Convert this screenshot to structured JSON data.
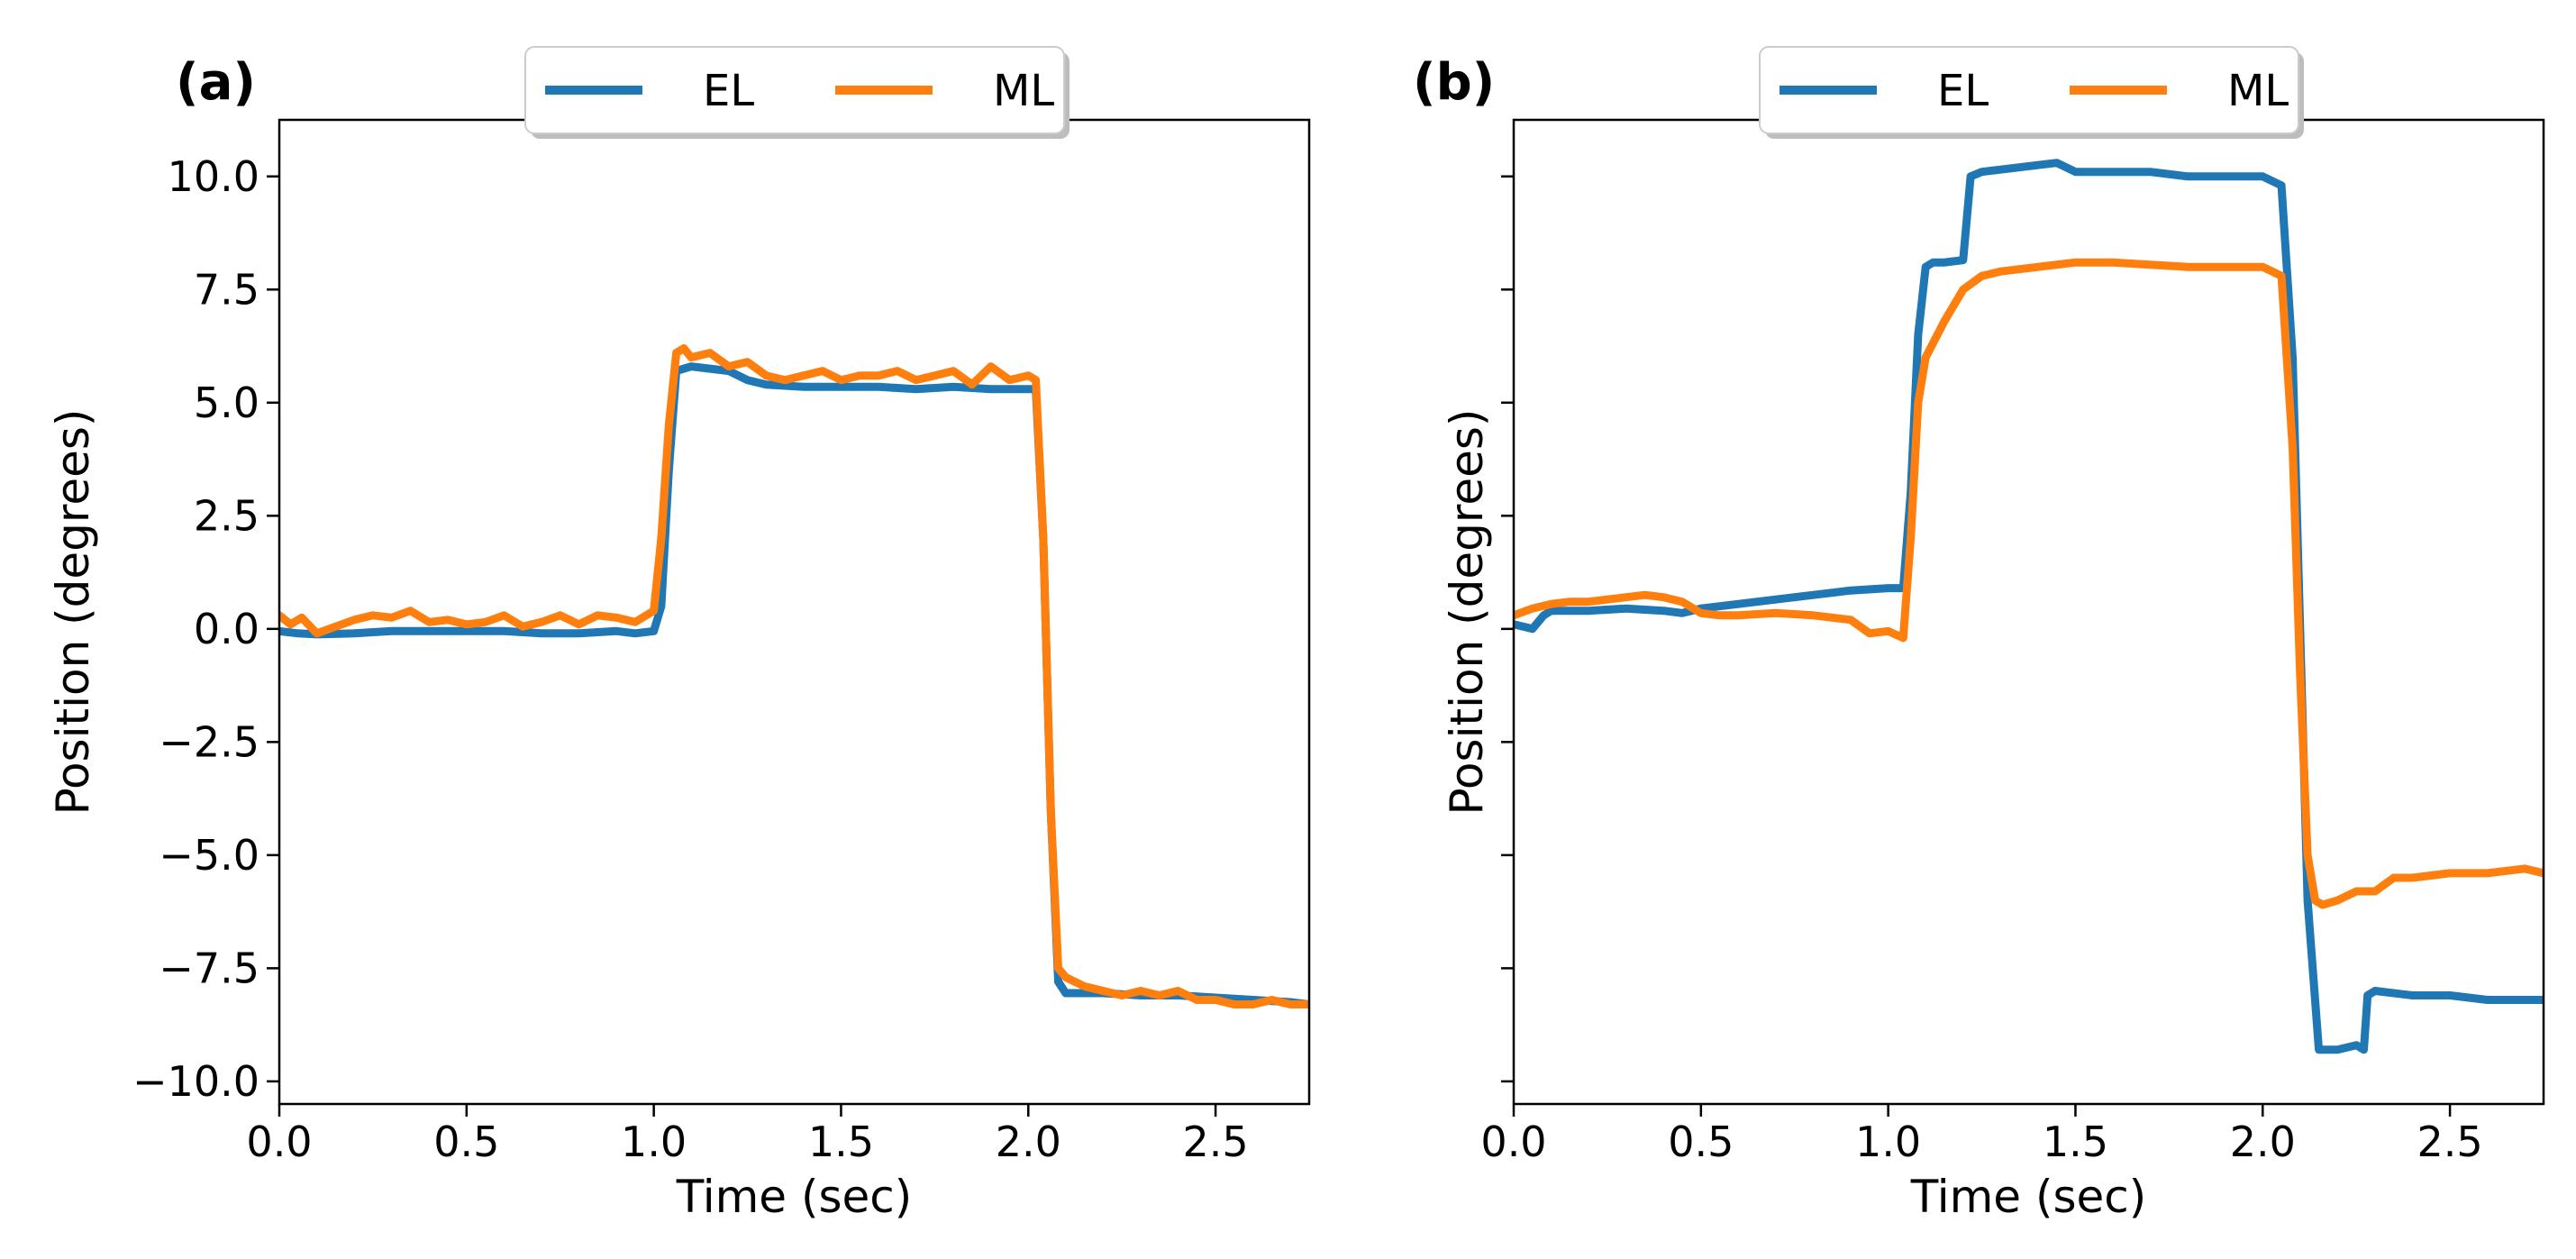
{
  "chart_data": [
    {
      "type": "line",
      "panel_label": "(a)",
      "xlabel": "Time (sec)",
      "ylabel": "Position (degrees)",
      "xlim": [
        0.0,
        2.75
      ],
      "ylim": [
        -10.5,
        11.25
      ],
      "xticks": [
        "0.0",
        "0.5",
        "1.0",
        "1.5",
        "2.0",
        "2.5"
      ],
      "yticks": [
        "10.0",
        "7.5",
        "5.0",
        "2.5",
        "0.0",
        "−2.5",
        "−5.0",
        "−7.5",
        "−10.0"
      ],
      "show_ytick_labels": true,
      "grid": false,
      "legend": "top-center",
      "series": [
        {
          "name": "EL",
          "color": "#1f77b4",
          "x": [
            0.0,
            0.05,
            0.1,
            0.2,
            0.3,
            0.4,
            0.5,
            0.6,
            0.7,
            0.8,
            0.9,
            0.95,
            1.0,
            1.02,
            1.04,
            1.06,
            1.1,
            1.2,
            1.25,
            1.3,
            1.4,
            1.5,
            1.6,
            1.7,
            1.8,
            1.9,
            2.0,
            2.02,
            2.04,
            2.06,
            2.08,
            2.1,
            2.2,
            2.3,
            2.4,
            2.5,
            2.6,
            2.7,
            2.75
          ],
          "y": [
            -0.05,
            -0.1,
            -0.12,
            -0.1,
            -0.05,
            -0.05,
            -0.05,
            -0.05,
            -0.1,
            -0.1,
            -0.05,
            -0.1,
            -0.05,
            0.5,
            3.5,
            5.7,
            5.8,
            5.7,
            5.5,
            5.4,
            5.35,
            5.35,
            5.35,
            5.3,
            5.35,
            5.3,
            5.3,
            5.3,
            2.0,
            -4.0,
            -7.8,
            -8.05,
            -8.05,
            -8.1,
            -8.1,
            -8.15,
            -8.2,
            -8.25,
            -8.3
          ]
        },
        {
          "name": "ML",
          "color": "#ff7f0e",
          "x": [
            0.0,
            0.03,
            0.06,
            0.1,
            0.15,
            0.2,
            0.25,
            0.3,
            0.35,
            0.4,
            0.45,
            0.5,
            0.55,
            0.6,
            0.65,
            0.7,
            0.75,
            0.8,
            0.85,
            0.9,
            0.95,
            1.0,
            1.02,
            1.04,
            1.06,
            1.08,
            1.1,
            1.15,
            1.2,
            1.25,
            1.3,
            1.35,
            1.4,
            1.45,
            1.5,
            1.55,
            1.6,
            1.65,
            1.7,
            1.75,
            1.8,
            1.85,
            1.9,
            1.95,
            2.0,
            2.02,
            2.04,
            2.06,
            2.08,
            2.1,
            2.15,
            2.2,
            2.25,
            2.3,
            2.35,
            2.4,
            2.45,
            2.5,
            2.55,
            2.6,
            2.65,
            2.7,
            2.75
          ],
          "y": [
            0.3,
            0.1,
            0.25,
            -0.1,
            0.05,
            0.2,
            0.3,
            0.25,
            0.4,
            0.15,
            0.2,
            0.1,
            0.15,
            0.3,
            0.05,
            0.15,
            0.3,
            0.1,
            0.3,
            0.25,
            0.15,
            0.4,
            2.0,
            4.5,
            6.1,
            6.2,
            6.0,
            6.1,
            5.8,
            5.9,
            5.6,
            5.5,
            5.6,
            5.7,
            5.5,
            5.6,
            5.6,
            5.7,
            5.5,
            5.6,
            5.7,
            5.4,
            5.8,
            5.5,
            5.6,
            5.5,
            2.0,
            -4.0,
            -7.5,
            -7.7,
            -7.9,
            -8.0,
            -8.1,
            -8.0,
            -8.1,
            -8.0,
            -8.2,
            -8.2,
            -8.3,
            -8.3,
            -8.2,
            -8.3,
            -8.3
          ]
        }
      ]
    },
    {
      "type": "line",
      "panel_label": "(b)",
      "xlabel": "Time (sec)",
      "ylabel": "Position (degrees)",
      "xlim": [
        0.0,
        2.75
      ],
      "ylim": [
        -10.5,
        11.25
      ],
      "xticks": [
        "0.0",
        "0.5",
        "1.0",
        "1.5",
        "2.0",
        "2.5"
      ],
      "yticks": [
        "10.0",
        "7.5",
        "5.0",
        "2.5",
        "0.0",
        "−2.5",
        "−5.0",
        "−7.5",
        "−10.0"
      ],
      "show_ytick_labels": false,
      "grid": false,
      "legend": "top-center",
      "series": [
        {
          "name": "EL",
          "color": "#1f77b4",
          "x": [
            0.0,
            0.05,
            0.08,
            0.1,
            0.2,
            0.3,
            0.4,
            0.45,
            0.5,
            0.6,
            0.7,
            0.8,
            0.9,
            1.0,
            1.04,
            1.06,
            1.08,
            1.1,
            1.12,
            1.15,
            1.2,
            1.22,
            1.25,
            1.3,
            1.4,
            1.45,
            1.5,
            1.6,
            1.7,
            1.8,
            1.9,
            2.0,
            2.05,
            2.08,
            2.1,
            2.12,
            2.15,
            2.2,
            2.25,
            2.27,
            2.28,
            2.3,
            2.4,
            2.5,
            2.6,
            2.7,
            2.75
          ],
          "y": [
            0.1,
            0.0,
            0.3,
            0.4,
            0.4,
            0.45,
            0.4,
            0.35,
            0.45,
            0.55,
            0.65,
            0.75,
            0.85,
            0.9,
            0.9,
            3.0,
            6.5,
            8.0,
            8.1,
            8.1,
            8.15,
            10.0,
            10.1,
            10.15,
            10.25,
            10.3,
            10.1,
            10.1,
            10.1,
            10.0,
            10.0,
            10.0,
            9.8,
            6.0,
            0.0,
            -6.0,
            -9.3,
            -9.3,
            -9.2,
            -9.3,
            -8.1,
            -8.0,
            -8.1,
            -8.1,
            -8.2,
            -8.2,
            -8.2
          ]
        },
        {
          "name": "ML",
          "color": "#ff7f0e",
          "x": [
            0.0,
            0.05,
            0.1,
            0.15,
            0.2,
            0.25,
            0.3,
            0.35,
            0.4,
            0.45,
            0.5,
            0.55,
            0.6,
            0.7,
            0.8,
            0.85,
            0.9,
            0.95,
            1.0,
            1.04,
            1.06,
            1.08,
            1.1,
            1.15,
            1.2,
            1.25,
            1.3,
            1.4,
            1.5,
            1.6,
            1.7,
            1.8,
            1.9,
            2.0,
            2.05,
            2.08,
            2.1,
            2.12,
            2.14,
            2.16,
            2.2,
            2.25,
            2.3,
            2.35,
            2.4,
            2.5,
            2.6,
            2.7,
            2.75
          ],
          "y": [
            0.3,
            0.45,
            0.55,
            0.6,
            0.6,
            0.65,
            0.7,
            0.75,
            0.7,
            0.6,
            0.35,
            0.3,
            0.3,
            0.35,
            0.3,
            0.25,
            0.2,
            -0.1,
            -0.05,
            -0.2,
            2.0,
            5.0,
            6.0,
            6.8,
            7.5,
            7.8,
            7.9,
            8.0,
            8.1,
            8.1,
            8.05,
            8.0,
            8.0,
            8.0,
            7.8,
            4.0,
            -1.0,
            -5.0,
            -6.0,
            -6.1,
            -6.0,
            -5.8,
            -5.8,
            -5.5,
            -5.5,
            -5.4,
            -5.4,
            -5.3,
            -5.4
          ]
        }
      ]
    }
  ]
}
